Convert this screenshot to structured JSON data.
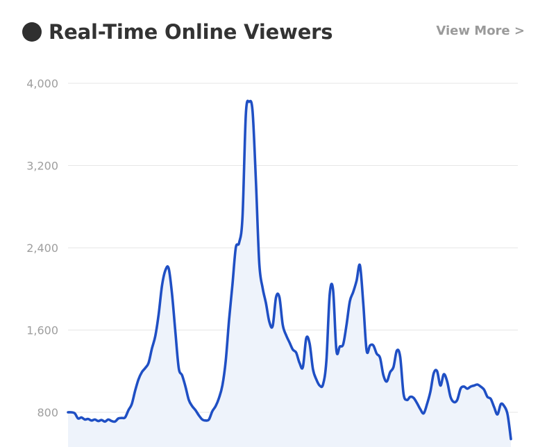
{
  "header": {
    "title": "Real-Time Online Viewers",
    "view_more_label": "View More >"
  },
  "colors": {
    "line": "#1f4fc4",
    "fill": "#eef3fb",
    "grid": "#e6e6e6",
    "tick": "#9e9e9e",
    "dot": "#2f2f2f"
  },
  "chart_data": {
    "type": "area",
    "title": "Real-Time Online Viewers",
    "xlabel": "",
    "ylabel": "",
    "ylim": [
      0,
      4000
    ],
    "y_ticks": [
      800,
      1600,
      2400,
      3200,
      4000
    ],
    "y_tick_labels": [
      "800",
      "1,600",
      "2,400",
      "3,200",
      "4,000"
    ],
    "grid": true,
    "series": [
      {
        "values": [
          800,
          800,
          790,
          740,
          750,
          730,
          735,
          720,
          730,
          715,
          725,
          710,
          730,
          715,
          710,
          740,
          745,
          750,
          820,
          880,
          1010,
          1120,
          1190,
          1230,
          1280,
          1420,
          1540,
          1750,
          2030,
          2180,
          2200,
          1950,
          1580,
          1230,
          1160,
          1050,
          920,
          860,
          820,
          770,
          730,
          720,
          730,
          810,
          860,
          940,
          1060,
          1300,
          1700,
          2040,
          2400,
          2450,
          2700,
          3700,
          3820,
          3730,
          3050,
          2250,
          2010,
          1860,
          1680,
          1640,
          1920,
          1920,
          1650,
          1550,
          1480,
          1410,
          1380,
          1280,
          1240,
          1520,
          1470,
          1220,
          1120,
          1060,
          1070,
          1300,
          1950,
          1990,
          1400,
          1440,
          1460,
          1650,
          1880,
          1970,
          2080,
          2230,
          1860,
          1400,
          1450,
          1450,
          1370,
          1330,
          1160,
          1100,
          1190,
          1240,
          1400,
          1340,
          980,
          920,
          950,
          940,
          890,
          830,
          790,
          880,
          1000,
          1180,
          1200,
          1060,
          1170,
          1100,
          950,
          900,
          920,
          1030,
          1050,
          1030,
          1050,
          1060,
          1070,
          1050,
          1020,
          950,
          930,
          850,
          780,
          880,
          860,
          780,
          540
        ]
      }
    ]
  }
}
